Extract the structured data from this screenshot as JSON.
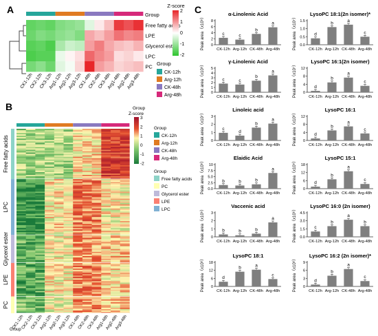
{
  "panels": {
    "a": "A",
    "b": "B",
    "c": "C"
  },
  "colors": {
    "ck12": "#26a69a",
    "arg12": "#e07b22",
    "ck48": "#8a79c0",
    "arg48": "#d6297a",
    "bar": "#7f7f7f",
    "ffa": "#8dd3c7",
    "pc": "#ffffb3",
    "glyc": "#bebada",
    "lpe": "#fb8072",
    "lpc": "#80b1d3"
  },
  "panelA": {
    "group_label": "Group",
    "rows": [
      "Free fatty acids",
      "LPE",
      "Glycerol ester",
      "LPC",
      "PC"
    ],
    "cols": [
      "CK1-12h",
      "CK2-12h",
      "CK3-12h",
      "Arg1-12h",
      "Arg2-12h",
      "Arg3-12h",
      "CK1-48h",
      "CK2-48h",
      "CK3-48h",
      "Arg1-48h",
      "Arg2-48h",
      "Arg3-48h"
    ],
    "scale_title": "Z-score",
    "scale_ticks": [
      "2",
      "1",
      "0",
      "-1",
      "-2"
    ],
    "legend_title": "Group",
    "legend": [
      "CK-12h",
      "Arg-12h",
      "CK-48h",
      "Arg-48h"
    ]
  },
  "panelB": {
    "group_label": "Group",
    "scale_title": "Z-score",
    "scale_ticks": [
      "3",
      "2",
      "1",
      "0",
      "-1",
      "-2"
    ],
    "legend1_title": "Group",
    "legend1": [
      "CK-12h",
      "Arg-12h",
      "CK-48h",
      "Arg-48h"
    ],
    "legend2_title": "Group",
    "legend2": [
      "Free fatty acids",
      "PC",
      "Glycerol ester",
      "LPE",
      "LPC"
    ],
    "row_groups": [
      "Free fatty acids",
      "LPC",
      "Glycerol ester",
      "LPE",
      "PC"
    ],
    "cols": [
      "CK1-12h",
      "CK2-12h",
      "CK3-12h",
      "Arg1-12h",
      "Arg2-12h",
      "Arg3-12h",
      "CK1-48h",
      "CK2-48h",
      "CK3-48h",
      "Arg1-48h",
      "Arg2-48h",
      "Arg3-48h"
    ],
    "corner": "Group"
  },
  "chart_data": [
    {
      "type": "bar",
      "title": "α-Linolenic Acid",
      "ylabel": "Peak area（x10⁵）",
      "categories": [
        "CK-12h",
        "Arg-12h",
        "CK-48h",
        "Arg-48h"
      ],
      "values": [
        2.3,
        1.7,
        3.6,
        5.8
      ],
      "ylim": [
        0,
        8
      ],
      "yticks": [
        "0",
        "2",
        "4",
        "6",
        "8"
      ],
      "letters": [
        "c",
        "c",
        "b",
        "a"
      ]
    },
    {
      "type": "bar",
      "title": "LysoPC 18:1(2n isomer)*",
      "ylabel": "Peak area（x10⁷）",
      "categories": [
        "CK-12h",
        "Arg-12h",
        "CK-48h",
        "Arg-48h"
      ],
      "values": [
        0.4,
        1.1,
        1.25,
        0.5
      ],
      "ylim": [
        0,
        1.5
      ],
      "yticks": [
        "0.0",
        "0.5",
        "1.0",
        "1.5"
      ],
      "letters": [
        "d",
        "b",
        "a",
        "c"
      ]
    },
    {
      "type": "bar",
      "title": "γ-Linolenic Acid",
      "ylabel": "Peak area（x10⁵）",
      "categories": [
        "CK-12h",
        "Arg-12h",
        "CK-48h",
        "Arg-48h"
      ],
      "values": [
        1.8,
        1.6,
        2.4,
        3.5
      ],
      "ylim": [
        0,
        5
      ],
      "yticks": [
        "0",
        "1",
        "2",
        "3",
        "4",
        "5"
      ],
      "letters": [
        "c",
        "c",
        "b",
        "a"
      ]
    },
    {
      "type": "bar",
      "title": "LysoPC 16:1(2n isomer)",
      "ylabel": "Peak area（x10⁷）",
      "categories": [
        "CK-12h",
        "Arg-12h",
        "CK-48h",
        "Arg-48h"
      ],
      "values": [
        0.7,
        4.9,
        7.3,
        3.2
      ],
      "ylim": [
        0,
        12
      ],
      "yticks": [
        "0",
        "4",
        "8",
        "12"
      ],
      "letters": [
        "d",
        "b",
        "a",
        "c"
      ]
    },
    {
      "type": "bar",
      "title": "Linoleic acid",
      "ylabel": "Peak area（x10⁷）",
      "categories": [
        "CK-12h",
        "Arg-12h",
        "CK-48h",
        "Arg-48h"
      ],
      "values": [
        0.95,
        0.6,
        1.6,
        2.1
      ],
      "ylim": [
        0,
        3
      ],
      "yticks": [
        "0",
        "1",
        "2",
        "3"
      ],
      "letters": [
        "c",
        "d",
        "b",
        "a"
      ]
    },
    {
      "type": "bar",
      "title": "LysoPC 16:1",
      "ylabel": "Peak area（x10⁶）",
      "categories": [
        "CK-12h",
        "Arg-12h",
        "CK-48h",
        "Arg-48h"
      ],
      "values": [
        1.0,
        5.0,
        7.0,
        3.5
      ],
      "ylim": [
        0,
        12
      ],
      "yticks": [
        "0",
        "4",
        "8",
        "12"
      ],
      "letters": [
        "d",
        "b",
        "a",
        "c"
      ]
    },
    {
      "type": "bar",
      "title": "Elaidic Acid",
      "ylabel": "Peak area（x10⁵）",
      "categories": [
        "CK-12h",
        "Arg-12h",
        "CK-48h",
        "Arg-48h"
      ],
      "values": [
        1.5,
        1.3,
        1.8,
        6.5
      ],
      "ylim": [
        0,
        10
      ],
      "yticks": [
        "0.0",
        "2.5",
        "5.0",
        "7.5",
        "10"
      ],
      "letters": [
        "b",
        "b",
        "b",
        "a"
      ]
    },
    {
      "type": "bar",
      "title": "LysoPC 15:1",
      "ylabel": "Peak area（x10⁵）",
      "categories": [
        "CK-12h",
        "Arg-12h",
        "CK-48h",
        "Arg-48h"
      ],
      "values": [
        1.5,
        7.0,
        13.0,
        3.5
      ],
      "ylim": [
        0,
        18
      ],
      "yticks": [
        "0",
        "6",
        "12",
        "18"
      ],
      "letters": [
        "d",
        "b",
        "a",
        "c"
      ]
    },
    {
      "type": "bar",
      "title": "Vaccenic acid",
      "ylabel": "Peak area（x10⁵）",
      "categories": [
        "CK-12h",
        "Arg-12h",
        "CK-48h",
        "Arg-48h"
      ],
      "values": [
        0.3,
        0.2,
        0.4,
        1.8
      ],
      "ylim": [
        0,
        3
      ],
      "yticks": [
        "0",
        "1",
        "2",
        "3"
      ],
      "letters": [
        "b",
        "b",
        "b",
        "a"
      ]
    },
    {
      "type": "bar",
      "title": "LysoPC 16:0 (2n isomer)",
      "ylabel": "Peak area（x10⁶）",
      "categories": [
        "CK-12h",
        "Arg-12h",
        "CK-48h",
        "Arg-48h"
      ],
      "values": [
        1.0,
        2.0,
        3.2,
        2.0
      ],
      "ylim": [
        0,
        4.5
      ],
      "yticks": [
        "0.0",
        "1.5",
        "3.0",
        "4.5"
      ],
      "letters": [
        "c",
        "b",
        "a",
        "b"
      ]
    },
    {
      "type": "bar",
      "title": "LysoPC 18:1",
      "ylabel": "Peak area（x10⁶）",
      "categories": [
        "CK-12h",
        "Arg-12h",
        "CK-48h",
        "Arg-48h"
      ],
      "values": [
        3.5,
        11.0,
        12.5,
        5.5
      ],
      "ylim": [
        0,
        18
      ],
      "yticks": [
        "0",
        "6",
        "12",
        "18"
      ],
      "letters": [
        "d",
        "b",
        "a",
        "c"
      ]
    },
    {
      "type": "bar",
      "title": "LysoPC 16:2 (2n isomer)*",
      "ylabel": "Peak area（x10⁶）",
      "categories": [
        "CK-12h",
        "Arg-12h",
        "CK-48h",
        "Arg-48h"
      ],
      "values": [
        0.7,
        4.0,
        6.5,
        2.0
      ],
      "ylim": [
        0,
        9
      ],
      "yticks": [
        "0",
        "3",
        "6",
        "9"
      ],
      "letters": [
        "d",
        "b",
        "a",
        "c"
      ]
    }
  ]
}
